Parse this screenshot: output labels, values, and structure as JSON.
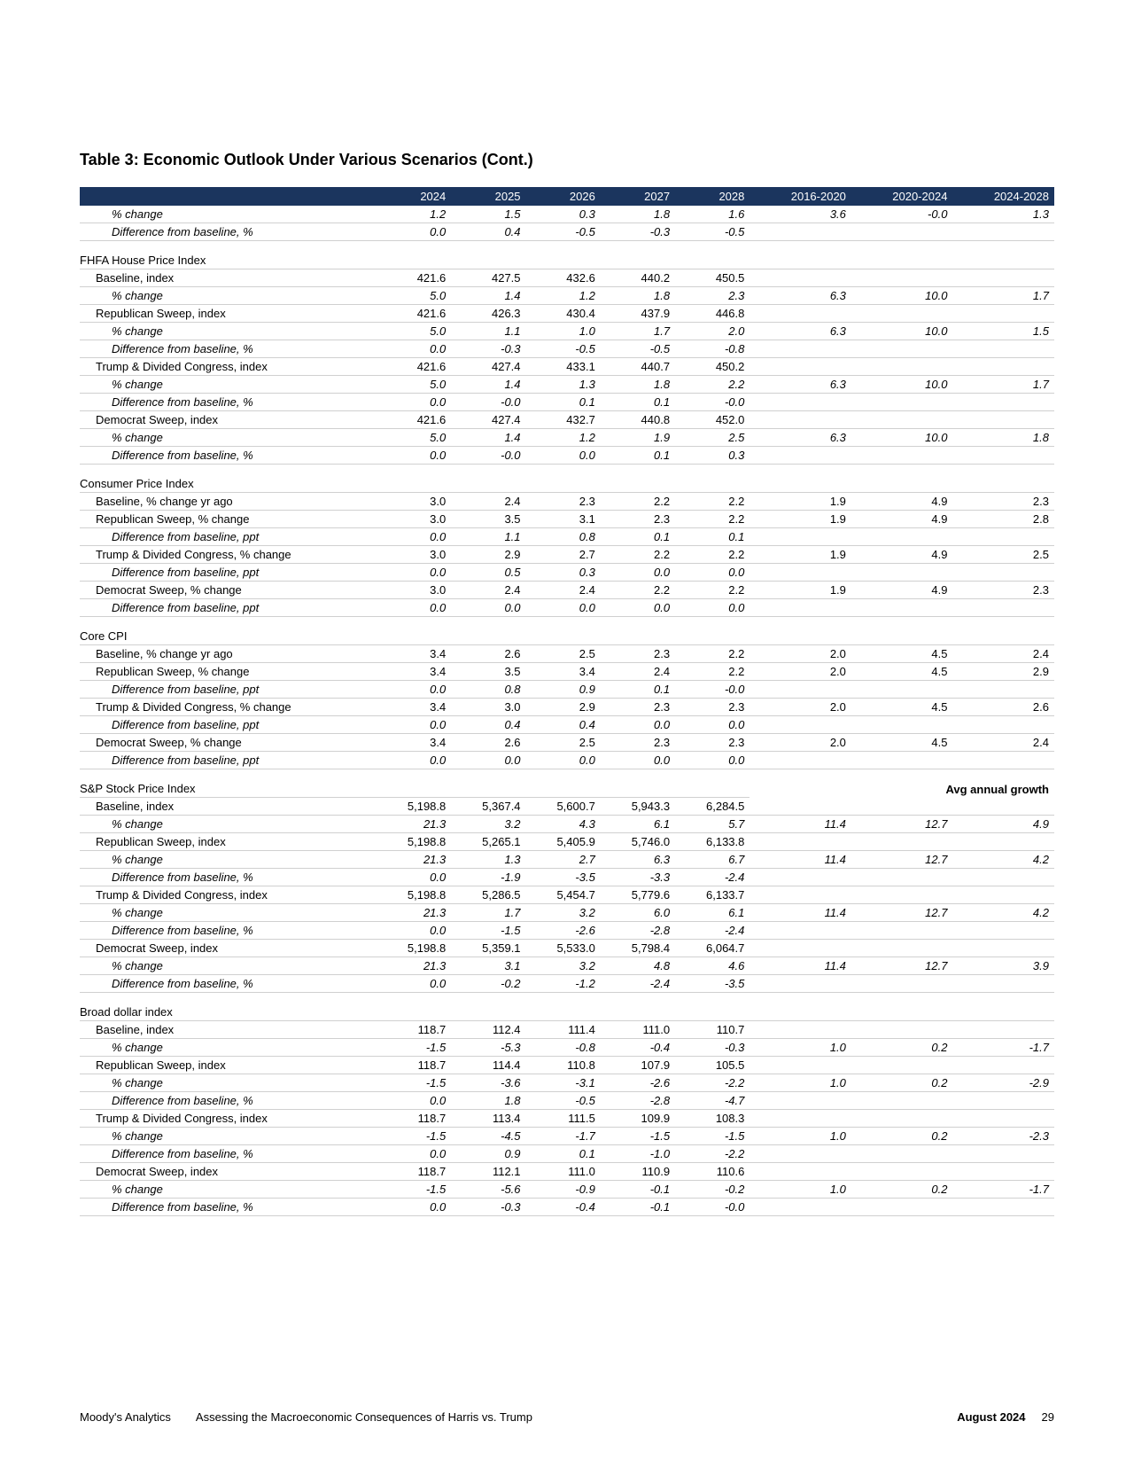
{
  "title": "Table 3: Economic Outlook Under Various Scenarios (Cont.)",
  "header_bg": "#1b355e",
  "columns": [
    "",
    "2024",
    "2025",
    "2026",
    "2027",
    "2028",
    "2016-2020",
    "2020-2024",
    "2024-2028"
  ],
  "footer": {
    "brand": "Moody's Analytics",
    "doc": "Assessing the Macroeconomic Consequences of Harris vs. Trump",
    "date": "August 2024",
    "page": "29"
  },
  "side_label": "Avg annual growth",
  "sections": [
    {
      "head": null,
      "rows": [
        {
          "type": "pct",
          "label": "% change",
          "v": [
            "1.2",
            "1.5",
            "0.3",
            "1.8",
            "1.6",
            "3.6",
            "-0.0",
            "1.3"
          ]
        },
        {
          "type": "sub",
          "label": "Difference from baseline, %",
          "v": [
            "0.0",
            "0.4",
            "-0.5",
            "-0.3",
            "-0.5",
            "",
            "",
            ""
          ]
        }
      ]
    },
    {
      "head": "FHFA House Price Index",
      "rows": [
        {
          "type": "data",
          "label": "Baseline, index",
          "v": [
            "421.6",
            "427.5",
            "432.6",
            "440.2",
            "450.5",
            "",
            "",
            ""
          ]
        },
        {
          "type": "pct",
          "label": "% change",
          "v": [
            "5.0",
            "1.4",
            "1.2",
            "1.8",
            "2.3",
            "6.3",
            "10.0",
            "1.7"
          ]
        },
        {
          "type": "data",
          "label": "Republican Sweep, index",
          "v": [
            "421.6",
            "426.3",
            "430.4",
            "437.9",
            "446.8",
            "",
            "",
            ""
          ]
        },
        {
          "type": "pct",
          "label": "% change",
          "v": [
            "5.0",
            "1.1",
            "1.0",
            "1.7",
            "2.0",
            "6.3",
            "10.0",
            "1.5"
          ]
        },
        {
          "type": "sub",
          "label": "Difference from baseline, %",
          "v": [
            "0.0",
            "-0.3",
            "-0.5",
            "-0.5",
            "-0.8",
            "",
            "",
            ""
          ]
        },
        {
          "type": "data",
          "label": "Trump & Divided Congress, index",
          "v": [
            "421.6",
            "427.4",
            "433.1",
            "440.7",
            "450.2",
            "",
            "",
            ""
          ]
        },
        {
          "type": "pct",
          "label": "% change",
          "v": [
            "5.0",
            "1.4",
            "1.3",
            "1.8",
            "2.2",
            "6.3",
            "10.0",
            "1.7"
          ]
        },
        {
          "type": "sub",
          "label": "Difference from baseline, %",
          "v": [
            "0.0",
            "-0.0",
            "0.1",
            "0.1",
            "-0.0",
            "",
            "",
            ""
          ]
        },
        {
          "type": "data",
          "label": "Democrat Sweep, index",
          "v": [
            "421.6",
            "427.4",
            "432.7",
            "440.8",
            "452.0",
            "",
            "",
            ""
          ]
        },
        {
          "type": "pct",
          "label": "% change",
          "v": [
            "5.0",
            "1.4",
            "1.2",
            "1.9",
            "2.5",
            "6.3",
            "10.0",
            "1.8"
          ]
        },
        {
          "type": "sub",
          "label": "Difference from baseline, %",
          "v": [
            "0.0",
            "-0.0",
            "0.0",
            "0.1",
            "0.3",
            "",
            "",
            ""
          ]
        }
      ]
    },
    {
      "head": "Consumer Price Index",
      "rows": [
        {
          "type": "data",
          "label": "Baseline, % change yr ago",
          "v": [
            "3.0",
            "2.4",
            "2.3",
            "2.2",
            "2.2",
            "1.9",
            "4.9",
            "2.3"
          ]
        },
        {
          "type": "data",
          "label": "Republican Sweep, % change",
          "v": [
            "3.0",
            "3.5",
            "3.1",
            "2.3",
            "2.2",
            "1.9",
            "4.9",
            "2.8"
          ]
        },
        {
          "type": "sub",
          "label": "Difference from baseline, ppt",
          "v": [
            "0.0",
            "1.1",
            "0.8",
            "0.1",
            "0.1",
            "",
            "",
            ""
          ]
        },
        {
          "type": "data",
          "label": "Trump & Divided Congress, % change",
          "v": [
            "3.0",
            "2.9",
            "2.7",
            "2.2",
            "2.2",
            "1.9",
            "4.9",
            "2.5"
          ]
        },
        {
          "type": "sub",
          "label": "Difference from baseline, ppt",
          "v": [
            "0.0",
            "0.5",
            "0.3",
            "0.0",
            "0.0",
            "",
            "",
            ""
          ]
        },
        {
          "type": "data",
          "label": "Democrat Sweep, % change",
          "v": [
            "3.0",
            "2.4",
            "2.4",
            "2.2",
            "2.2",
            "1.9",
            "4.9",
            "2.3"
          ]
        },
        {
          "type": "sub",
          "label": "Difference from baseline, ppt",
          "v": [
            "0.0",
            "0.0",
            "0.0",
            "0.0",
            "0.0",
            "",
            "",
            ""
          ]
        }
      ]
    },
    {
      "head": "Core CPI",
      "rows": [
        {
          "type": "data",
          "label": "Baseline, % change yr ago",
          "v": [
            "3.4",
            "2.6",
            "2.5",
            "2.3",
            "2.2",
            "2.0",
            "4.5",
            "2.4"
          ]
        },
        {
          "type": "data",
          "label": "Republican Sweep, % change",
          "v": [
            "3.4",
            "3.5",
            "3.4",
            "2.4",
            "2.2",
            "2.0",
            "4.5",
            "2.9"
          ]
        },
        {
          "type": "sub",
          "label": "Difference from baseline, ppt",
          "v": [
            "0.0",
            "0.8",
            "0.9",
            "0.1",
            "-0.0",
            "",
            "",
            ""
          ]
        },
        {
          "type": "data",
          "label": "Trump & Divided Congress, % change",
          "v": [
            "3.4",
            "3.0",
            "2.9",
            "2.3",
            "2.3",
            "2.0",
            "4.5",
            "2.6"
          ]
        },
        {
          "type": "sub",
          "label": "Difference from baseline, ppt",
          "v": [
            "0.0",
            "0.4",
            "0.4",
            "0.0",
            "0.0",
            "",
            "",
            ""
          ]
        },
        {
          "type": "data",
          "label": "Democrat Sweep, % change",
          "v": [
            "3.4",
            "2.6",
            "2.5",
            "2.3",
            "2.3",
            "2.0",
            "4.5",
            "2.4"
          ]
        },
        {
          "type": "sub",
          "label": "Difference from baseline, ppt",
          "v": [
            "0.0",
            "0.0",
            "0.0",
            "0.0",
            "0.0",
            "",
            "",
            ""
          ]
        }
      ]
    },
    {
      "head": "S&P Stock Price Index",
      "side": true,
      "rows": [
        {
          "type": "data",
          "label": "Baseline, index",
          "v": [
            "5,198.8",
            "5,367.4",
            "5,600.7",
            "5,943.3",
            "6,284.5",
            "",
            "",
            ""
          ]
        },
        {
          "type": "pct",
          "label": "% change",
          "v": [
            "21.3",
            "3.2",
            "4.3",
            "6.1",
            "5.7",
            "11.4",
            "12.7",
            "4.9"
          ]
        },
        {
          "type": "data",
          "label": "Republican Sweep, index",
          "v": [
            "5,198.8",
            "5,265.1",
            "5,405.9",
            "5,746.0",
            "6,133.8",
            "",
            "",
            ""
          ]
        },
        {
          "type": "pct",
          "label": "% change",
          "v": [
            "21.3",
            "1.3",
            "2.7",
            "6.3",
            "6.7",
            "11.4",
            "12.7",
            "4.2"
          ]
        },
        {
          "type": "sub",
          "label": "Difference from baseline, %",
          "v": [
            "0.0",
            "-1.9",
            "-3.5",
            "-3.3",
            "-2.4",
            "",
            "",
            ""
          ]
        },
        {
          "type": "data",
          "label": "Trump & Divided Congress, index",
          "v": [
            "5,198.8",
            "5,286.5",
            "5,454.7",
            "5,779.6",
            "6,133.7",
            "",
            "",
            ""
          ]
        },
        {
          "type": "pct",
          "label": "% change",
          "v": [
            "21.3",
            "1.7",
            "3.2",
            "6.0",
            "6.1",
            "11.4",
            "12.7",
            "4.2"
          ]
        },
        {
          "type": "sub",
          "label": "Difference from baseline, %",
          "v": [
            "0.0",
            "-1.5",
            "-2.6",
            "-2.8",
            "-2.4",
            "",
            "",
            ""
          ]
        },
        {
          "type": "data",
          "label": "Democrat Sweep, index",
          "v": [
            "5,198.8",
            "5,359.1",
            "5,533.0",
            "5,798.4",
            "6,064.7",
            "",
            "",
            ""
          ]
        },
        {
          "type": "pct",
          "label": "% change",
          "v": [
            "21.3",
            "3.1",
            "3.2",
            "4.8",
            "4.6",
            "11.4",
            "12.7",
            "3.9"
          ]
        },
        {
          "type": "sub",
          "label": "Difference from baseline, %",
          "v": [
            "0.0",
            "-0.2",
            "-1.2",
            "-2.4",
            "-3.5",
            "",
            "",
            ""
          ]
        }
      ]
    },
    {
      "head": "Broad dollar index",
      "rows": [
        {
          "type": "data",
          "label": "Baseline, index",
          "v": [
            "118.7",
            "112.4",
            "111.4",
            "111.0",
            "110.7",
            "",
            "",
            ""
          ]
        },
        {
          "type": "pct",
          "label": "% change",
          "v": [
            "-1.5",
            "-5.3",
            "-0.8",
            "-0.4",
            "-0.3",
            "1.0",
            "0.2",
            "-1.7"
          ]
        },
        {
          "type": "data",
          "label": "Republican Sweep, index",
          "v": [
            "118.7",
            "114.4",
            "110.8",
            "107.9",
            "105.5",
            "",
            "",
            ""
          ]
        },
        {
          "type": "pct",
          "label": "% change",
          "v": [
            "-1.5",
            "-3.6",
            "-3.1",
            "-2.6",
            "-2.2",
            "1.0",
            "0.2",
            "-2.9"
          ]
        },
        {
          "type": "sub",
          "label": "Difference from baseline, %",
          "v": [
            "0.0",
            "1.8",
            "-0.5",
            "-2.8",
            "-4.7",
            "",
            "",
            ""
          ]
        },
        {
          "type": "data",
          "label": "Trump & Divided Congress, index",
          "v": [
            "118.7",
            "113.4",
            "111.5",
            "109.9",
            "108.3",
            "",
            "",
            ""
          ]
        },
        {
          "type": "pct",
          "label": "% change",
          "v": [
            "-1.5",
            "-4.5",
            "-1.7",
            "-1.5",
            "-1.5",
            "1.0",
            "0.2",
            "-2.3"
          ]
        },
        {
          "type": "sub",
          "label": "Difference from baseline, %",
          "v": [
            "0.0",
            "0.9",
            "0.1",
            "-1.0",
            "-2.2",
            "",
            "",
            ""
          ]
        },
        {
          "type": "data",
          "label": "Democrat Sweep, index",
          "v": [
            "118.7",
            "112.1",
            "111.0",
            "110.9",
            "110.6",
            "",
            "",
            ""
          ]
        },
        {
          "type": "pct",
          "label": "% change",
          "v": [
            "-1.5",
            "-5.6",
            "-0.9",
            "-0.1",
            "-0.2",
            "1.0",
            "0.2",
            "-1.7"
          ]
        },
        {
          "type": "sub",
          "label": "Difference from baseline, %",
          "v": [
            "0.0",
            "-0.3",
            "-0.4",
            "-0.1",
            "-0.0",
            "",
            "",
            ""
          ]
        }
      ]
    }
  ]
}
